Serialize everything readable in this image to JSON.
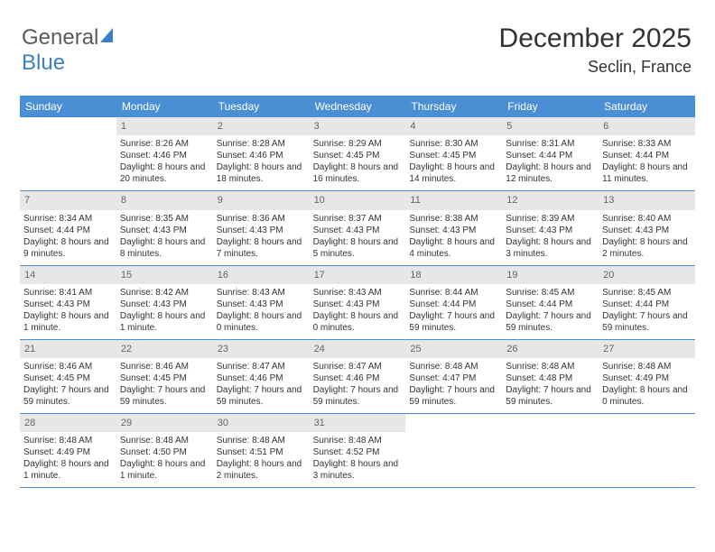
{
  "logo": {
    "word1": "General",
    "word2": "Blue"
  },
  "header": {
    "month": "December 2025",
    "location": "Seclin, France"
  },
  "colors": {
    "header_bg": "#4a8fd4",
    "header_text": "#ffffff",
    "daynum_bg": "#e7e7e7",
    "daynum_text": "#666666",
    "body_text": "#333333",
    "rule": "#4a8fd4",
    "logo_gray": "#5a5a5a",
    "logo_blue": "#3b7fc4"
  },
  "daysOfWeek": [
    "Sunday",
    "Monday",
    "Tuesday",
    "Wednesday",
    "Thursday",
    "Friday",
    "Saturday"
  ],
  "weeks": [
    [
      {
        "n": "",
        "sr": "",
        "ss": "",
        "dl": ""
      },
      {
        "n": "1",
        "sr": "Sunrise: 8:26 AM",
        "ss": "Sunset: 4:46 PM",
        "dl": "Daylight: 8 hours and 20 minutes."
      },
      {
        "n": "2",
        "sr": "Sunrise: 8:28 AM",
        "ss": "Sunset: 4:46 PM",
        "dl": "Daylight: 8 hours and 18 minutes."
      },
      {
        "n": "3",
        "sr": "Sunrise: 8:29 AM",
        "ss": "Sunset: 4:45 PM",
        "dl": "Daylight: 8 hours and 16 minutes."
      },
      {
        "n": "4",
        "sr": "Sunrise: 8:30 AM",
        "ss": "Sunset: 4:45 PM",
        "dl": "Daylight: 8 hours and 14 minutes."
      },
      {
        "n": "5",
        "sr": "Sunrise: 8:31 AM",
        "ss": "Sunset: 4:44 PM",
        "dl": "Daylight: 8 hours and 12 minutes."
      },
      {
        "n": "6",
        "sr": "Sunrise: 8:33 AM",
        "ss": "Sunset: 4:44 PM",
        "dl": "Daylight: 8 hours and 11 minutes."
      }
    ],
    [
      {
        "n": "7",
        "sr": "Sunrise: 8:34 AM",
        "ss": "Sunset: 4:44 PM",
        "dl": "Daylight: 8 hours and 9 minutes."
      },
      {
        "n": "8",
        "sr": "Sunrise: 8:35 AM",
        "ss": "Sunset: 4:43 PM",
        "dl": "Daylight: 8 hours and 8 minutes."
      },
      {
        "n": "9",
        "sr": "Sunrise: 8:36 AM",
        "ss": "Sunset: 4:43 PM",
        "dl": "Daylight: 8 hours and 7 minutes."
      },
      {
        "n": "10",
        "sr": "Sunrise: 8:37 AM",
        "ss": "Sunset: 4:43 PM",
        "dl": "Daylight: 8 hours and 5 minutes."
      },
      {
        "n": "11",
        "sr": "Sunrise: 8:38 AM",
        "ss": "Sunset: 4:43 PM",
        "dl": "Daylight: 8 hours and 4 minutes."
      },
      {
        "n": "12",
        "sr": "Sunrise: 8:39 AM",
        "ss": "Sunset: 4:43 PM",
        "dl": "Daylight: 8 hours and 3 minutes."
      },
      {
        "n": "13",
        "sr": "Sunrise: 8:40 AM",
        "ss": "Sunset: 4:43 PM",
        "dl": "Daylight: 8 hours and 2 minutes."
      }
    ],
    [
      {
        "n": "14",
        "sr": "Sunrise: 8:41 AM",
        "ss": "Sunset: 4:43 PM",
        "dl": "Daylight: 8 hours and 1 minute."
      },
      {
        "n": "15",
        "sr": "Sunrise: 8:42 AM",
        "ss": "Sunset: 4:43 PM",
        "dl": "Daylight: 8 hours and 1 minute."
      },
      {
        "n": "16",
        "sr": "Sunrise: 8:43 AM",
        "ss": "Sunset: 4:43 PM",
        "dl": "Daylight: 8 hours and 0 minutes."
      },
      {
        "n": "17",
        "sr": "Sunrise: 8:43 AM",
        "ss": "Sunset: 4:43 PM",
        "dl": "Daylight: 8 hours and 0 minutes."
      },
      {
        "n": "18",
        "sr": "Sunrise: 8:44 AM",
        "ss": "Sunset: 4:44 PM",
        "dl": "Daylight: 7 hours and 59 minutes."
      },
      {
        "n": "19",
        "sr": "Sunrise: 8:45 AM",
        "ss": "Sunset: 4:44 PM",
        "dl": "Daylight: 7 hours and 59 minutes."
      },
      {
        "n": "20",
        "sr": "Sunrise: 8:45 AM",
        "ss": "Sunset: 4:44 PM",
        "dl": "Daylight: 7 hours and 59 minutes."
      }
    ],
    [
      {
        "n": "21",
        "sr": "Sunrise: 8:46 AM",
        "ss": "Sunset: 4:45 PM",
        "dl": "Daylight: 7 hours and 59 minutes."
      },
      {
        "n": "22",
        "sr": "Sunrise: 8:46 AM",
        "ss": "Sunset: 4:45 PM",
        "dl": "Daylight: 7 hours and 59 minutes."
      },
      {
        "n": "23",
        "sr": "Sunrise: 8:47 AM",
        "ss": "Sunset: 4:46 PM",
        "dl": "Daylight: 7 hours and 59 minutes."
      },
      {
        "n": "24",
        "sr": "Sunrise: 8:47 AM",
        "ss": "Sunset: 4:46 PM",
        "dl": "Daylight: 7 hours and 59 minutes."
      },
      {
        "n": "25",
        "sr": "Sunrise: 8:48 AM",
        "ss": "Sunset: 4:47 PM",
        "dl": "Daylight: 7 hours and 59 minutes."
      },
      {
        "n": "26",
        "sr": "Sunrise: 8:48 AM",
        "ss": "Sunset: 4:48 PM",
        "dl": "Daylight: 7 hours and 59 minutes."
      },
      {
        "n": "27",
        "sr": "Sunrise: 8:48 AM",
        "ss": "Sunset: 4:49 PM",
        "dl": "Daylight: 8 hours and 0 minutes."
      }
    ],
    [
      {
        "n": "28",
        "sr": "Sunrise: 8:48 AM",
        "ss": "Sunset: 4:49 PM",
        "dl": "Daylight: 8 hours and 1 minute."
      },
      {
        "n": "29",
        "sr": "Sunrise: 8:48 AM",
        "ss": "Sunset: 4:50 PM",
        "dl": "Daylight: 8 hours and 1 minute."
      },
      {
        "n": "30",
        "sr": "Sunrise: 8:48 AM",
        "ss": "Sunset: 4:51 PM",
        "dl": "Daylight: 8 hours and 2 minutes."
      },
      {
        "n": "31",
        "sr": "Sunrise: 8:48 AM",
        "ss": "Sunset: 4:52 PM",
        "dl": "Daylight: 8 hours and 3 minutes."
      },
      {
        "n": "",
        "sr": "",
        "ss": "",
        "dl": ""
      },
      {
        "n": "",
        "sr": "",
        "ss": "",
        "dl": ""
      },
      {
        "n": "",
        "sr": "",
        "ss": "",
        "dl": ""
      }
    ]
  ]
}
